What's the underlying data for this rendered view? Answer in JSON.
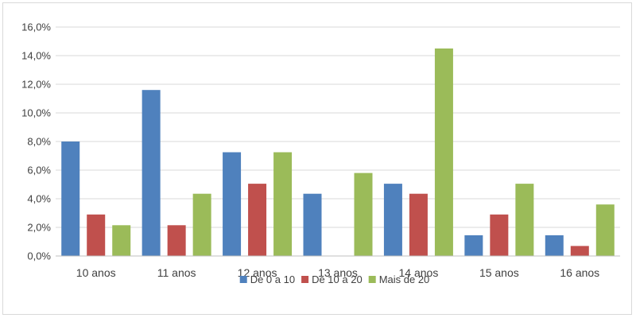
{
  "chart_data": {
    "type": "bar",
    "title": "",
    "xlabel": "",
    "ylabel": "",
    "ylim": [
      0,
      16
    ],
    "y_tick_step": 2,
    "y_tick_labels": [
      "0,0%",
      "2,0%",
      "4,0%",
      "6,0%",
      "8,0%",
      "10,0%",
      "12,0%",
      "14,0%",
      "16,0%"
    ],
    "categories": [
      "10 anos",
      "11 anos",
      "12 anos",
      "13 anos",
      "14 anos",
      "15 anos",
      "16 anos"
    ],
    "series": [
      {
        "name": "De 0 a 10",
        "color": "#4f81bd",
        "values": [
          8.0,
          11.6,
          7.25,
          4.35,
          5.05,
          1.45,
          1.45
        ]
      },
      {
        "name": "De 10 a 20",
        "color": "#c0504d",
        "values": [
          2.9,
          2.15,
          5.05,
          0.0,
          4.35,
          2.9,
          0.7
        ]
      },
      {
        "name": "Mais de 20",
        "color": "#9bbb59",
        "values": [
          2.15,
          4.35,
          7.25,
          5.8,
          14.5,
          5.05,
          3.6
        ]
      }
    ],
    "grid": true,
    "legend_position": "bottom"
  }
}
